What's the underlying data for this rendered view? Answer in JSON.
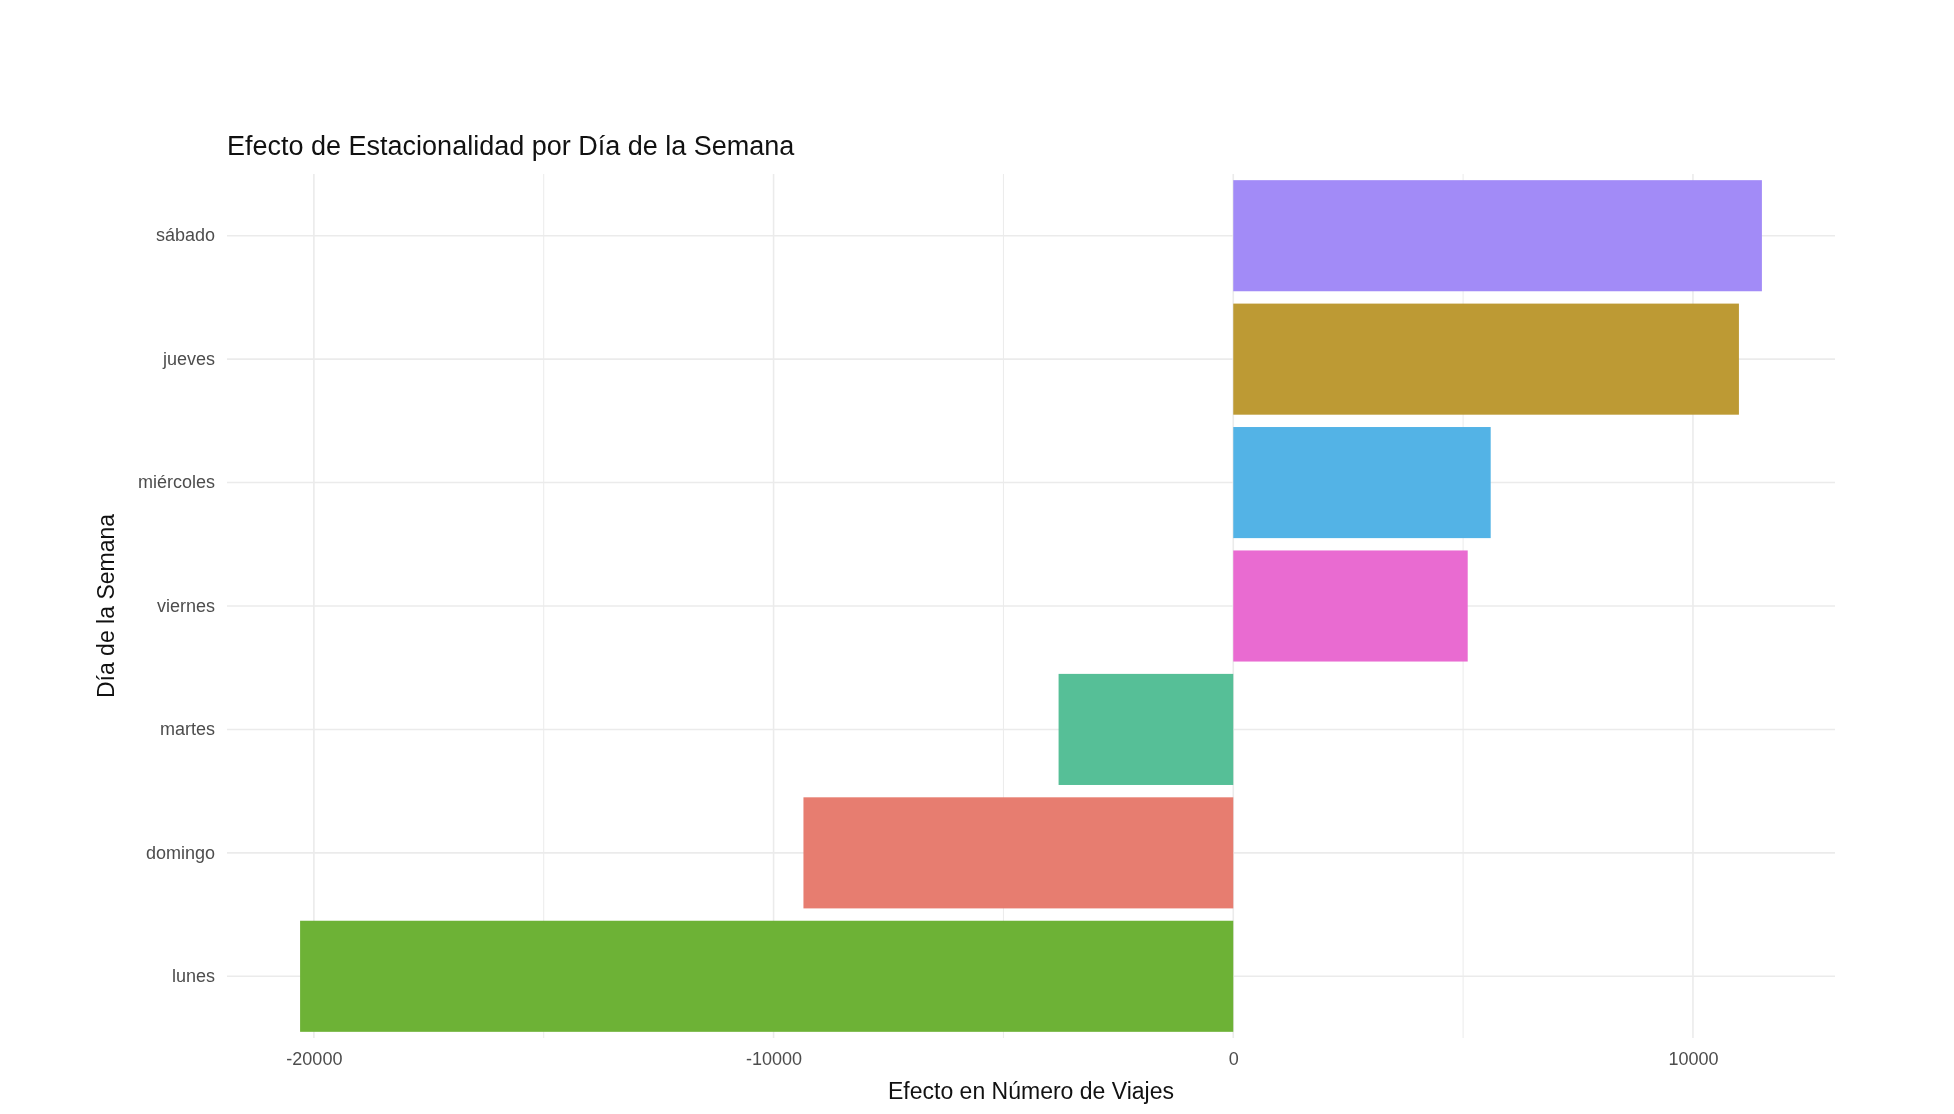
{
  "chart_data": {
    "type": "bar",
    "orientation": "horizontal",
    "title": "Efecto de Estacionalidad por Día de la Semana",
    "xlabel": "Efecto en Número de Viajes",
    "ylabel": "Día de la Semana",
    "categories": [
      "sábado",
      "jueves",
      "miércoles",
      "viernes",
      "martes",
      "domingo",
      "lunes"
    ],
    "values": [
      11500,
      11000,
      5600,
      5100,
      -3800,
      -9350,
      -20300
    ],
    "colors": [
      "#a28bf7",
      "#bd9a34",
      "#53b3e6",
      "#e96bd1",
      "#56bf97",
      "#e77d70",
      "#6db236"
    ],
    "xlim": [
      -21890,
      13090
    ],
    "xticks": [
      -20000,
      {
        "value": -15000,
        "label": null
      },
      -10000,
      {
        "value": -5000,
        "label": null
      },
      0,
      {
        "value": 5000,
        "label": null
      },
      10000
    ],
    "grid": true
  }
}
